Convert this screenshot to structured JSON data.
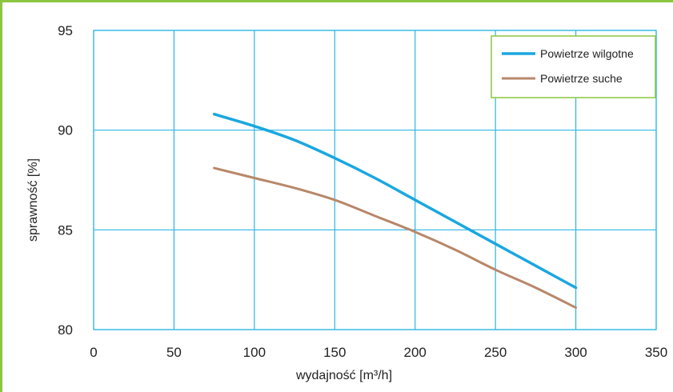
{
  "chart_data": {
    "type": "line",
    "xlabel": "wydajność [m³/h]",
    "ylabel": "sprawność [%]",
    "xlim": [
      0,
      350
    ],
    "ylim": [
      80,
      95
    ],
    "x_ticks": [
      0,
      50,
      100,
      150,
      200,
      250,
      300,
      350
    ],
    "y_ticks": [
      80,
      85,
      90,
      95
    ],
    "grid": true,
    "legend_position": "top-right",
    "series": [
      {
        "name": "Powietrze wilgotne",
        "color": "#1aa7e0",
        "x": [
          75,
          100,
          125,
          150,
          175,
          200,
          225,
          250,
          275,
          300
        ],
        "y": [
          90.8,
          90.2,
          89.5,
          88.6,
          87.6,
          86.5,
          85.4,
          84.3,
          83.2,
          82.1
        ]
      },
      {
        "name": "Powietrze suche",
        "color": "#b8876a",
        "x": [
          75,
          100,
          125,
          150,
          175,
          200,
          225,
          250,
          275,
          300
        ],
        "y": [
          88.1,
          87.6,
          87.1,
          86.5,
          85.7,
          84.9,
          84.0,
          83.0,
          82.1,
          81.1
        ]
      }
    ]
  }
}
